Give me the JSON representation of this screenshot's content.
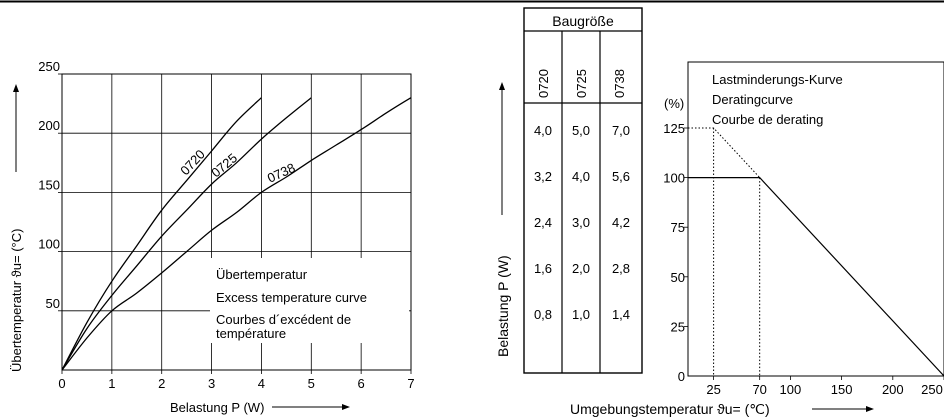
{
  "chart_data": [
    {
      "type": "line",
      "title": "",
      "xlabel": "Belastung P (W)",
      "ylabel": "Übertemperatur ϑu= (°C)",
      "xlim": [
        0,
        7
      ],
      "ylim": [
        0,
        250
      ],
      "x_ticks": [
        "0",
        "1",
        "2",
        "3",
        "4",
        "5",
        "6",
        "7"
      ],
      "y_ticks": [
        "50",
        "100",
        "150",
        "200",
        "250"
      ],
      "grid": true,
      "legend_lines": [
        "Übertemperatur",
        "Excess temperature curve",
        "Courbes d´excédent de",
        "température"
      ],
      "series": [
        {
          "name": "0720",
          "x": [
            0,
            0.5,
            1,
            1.5,
            2,
            2.5,
            3,
            3.5,
            4
          ],
          "y": [
            0,
            40,
            75,
            105,
            135,
            160,
            185,
            210,
            230
          ]
        },
        {
          "name": "0725",
          "x": [
            0,
            0.5,
            1,
            1.5,
            2,
            2.5,
            3,
            3.5,
            4,
            4.5,
            5
          ],
          "y": [
            0,
            35,
            63,
            88,
            113,
            135,
            157,
            175,
            195,
            213,
            230
          ]
        },
        {
          "name": "0738",
          "x": [
            0,
            0.5,
            1,
            1.5,
            2,
            2.5,
            3,
            3.5,
            4,
            4.5,
            5,
            5.5,
            6,
            6.5,
            7
          ],
          "y": [
            0,
            27,
            50,
            65,
            82,
            100,
            118,
            133,
            150,
            163,
            177,
            190,
            203,
            217,
            230
          ]
        }
      ]
    },
    {
      "type": "table",
      "header": "Baugröße",
      "columns": [
        "0720",
        "0725",
        "0738"
      ],
      "rows": [
        [
          "4,0",
          "5,0",
          "7,0"
        ],
        [
          "3,2",
          "4,0",
          "5,6"
        ],
        [
          "2,4",
          "3,0",
          "4,2"
        ],
        [
          "1,6",
          "2,0",
          "2,8"
        ],
        [
          "0,8",
          "1,0",
          "1,4"
        ]
      ],
      "ylabel": "Belastung P (W)"
    },
    {
      "type": "line",
      "title": "",
      "xlabel": "Umgebungstemperatur ϑu= (℃)",
      "ylabel": "(%)",
      "xlim": [
        0,
        250
      ],
      "ylim": [
        0,
        125
      ],
      "x_ticks": [
        "25",
        "70",
        "100",
        "150",
        "200",
        "250"
      ],
      "y_ticks": [
        "0",
        "25",
        "50",
        "75",
        "100",
        "125"
      ],
      "legend_lines": [
        "Lastminderungs-Kurve",
        "Deratingcurve",
        "Courbe de derating"
      ],
      "series": [
        {
          "style": "solid",
          "x": [
            0,
            70,
            250
          ],
          "y": [
            100,
            100,
            0
          ]
        },
        {
          "style": "dotted",
          "x": [
            0,
            25,
            70
          ],
          "y": [
            125,
            125,
            100
          ]
        }
      ],
      "guides": [
        {
          "x": 25,
          "y": 125
        },
        {
          "x": 70,
          "y": 100
        }
      ]
    }
  ]
}
